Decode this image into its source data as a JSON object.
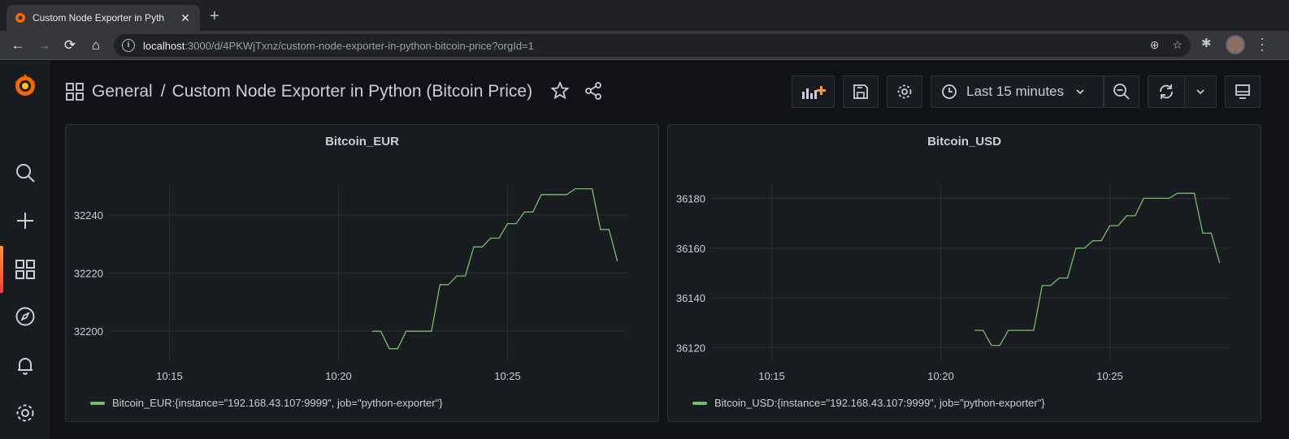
{
  "browser": {
    "tab_title": "Custom Node Exporter in Pyth",
    "url_host": "localhost",
    "url_rest": ":3000/d/4PKWjTxnz/custom-node-exporter-in-python-bitcoin-price?orgId=1"
  },
  "grafana": {
    "breadcrumb_folder": "General",
    "breadcrumb_separator": "/",
    "dashboard_title": "Custom Node Exporter in Python (Bitcoin Price)",
    "time_range_label": "Last 15 minutes"
  },
  "chart_data": [
    {
      "type": "line",
      "title": "Bitcoin_EUR",
      "x_ticks": [
        "10:15",
        "10:20",
        "10:25"
      ],
      "y_ticks": [
        "32200",
        "32220",
        "32240"
      ],
      "ylim": [
        32190,
        32250
      ],
      "grid": true,
      "legend_position": "bottom-left",
      "series": [
        {
          "name": "Bitcoin_EUR:{instance=\"192.168.43.107:9999\", job=\"python-exporter\"}",
          "color": "#73bf69",
          "x": [
            "10:21:00",
            "10:21:15",
            "10:21:30",
            "10:21:45",
            "10:22:00",
            "10:22:15",
            "10:22:30",
            "10:22:45",
            "10:23:00",
            "10:23:15",
            "10:23:30",
            "10:23:45",
            "10:24:00",
            "10:24:15",
            "10:24:30",
            "10:24:45",
            "10:25:00",
            "10:25:15",
            "10:25:30",
            "10:25:45",
            "10:26:00",
            "10:26:15",
            "10:26:30",
            "10:26:45",
            "10:27:00",
            "10:27:15",
            "10:27:30",
            "10:27:45",
            "10:28:00",
            "10:28:15"
          ],
          "values": [
            32200,
            32200,
            32194,
            32194,
            32200,
            32200,
            32200,
            32200,
            32216,
            32216,
            32219,
            32219,
            32229,
            32229,
            32232,
            32232,
            32237,
            32237,
            32241,
            32241,
            32247,
            32247,
            32247,
            32247,
            32249,
            32249,
            32249,
            32235,
            32235,
            32224
          ]
        }
      ]
    },
    {
      "type": "line",
      "title": "Bitcoin_USD",
      "x_ticks": [
        "10:15",
        "10:20",
        "10:25"
      ],
      "y_ticks": [
        "36120",
        "36140",
        "36160",
        "36180"
      ],
      "ylim": [
        36115,
        36185
      ],
      "grid": true,
      "legend_position": "bottom-left",
      "series": [
        {
          "name": "Bitcoin_USD:{instance=\"192.168.43.107:9999\", job=\"python-exporter\"}",
          "color": "#73bf69",
          "x": [
            "10:21:00",
            "10:21:15",
            "10:21:30",
            "10:21:45",
            "10:22:00",
            "10:22:15",
            "10:22:30",
            "10:22:45",
            "10:23:00",
            "10:23:15",
            "10:23:30",
            "10:23:45",
            "10:24:00",
            "10:24:15",
            "10:24:30",
            "10:24:45",
            "10:25:00",
            "10:25:15",
            "10:25:30",
            "10:25:45",
            "10:26:00",
            "10:26:15",
            "10:26:30",
            "10:26:45",
            "10:27:00",
            "10:27:15",
            "10:27:30",
            "10:27:45",
            "10:28:00",
            "10:28:15"
          ],
          "values": [
            36127,
            36127,
            36121,
            36121,
            36127,
            36127,
            36127,
            36127,
            36145,
            36145,
            36148,
            36148,
            36160,
            36160,
            36163,
            36163,
            36169,
            36169,
            36173,
            36173,
            36180,
            36180,
            36180,
            36180,
            36182,
            36182,
            36182,
            36166,
            36166,
            36154
          ]
        }
      ]
    }
  ]
}
